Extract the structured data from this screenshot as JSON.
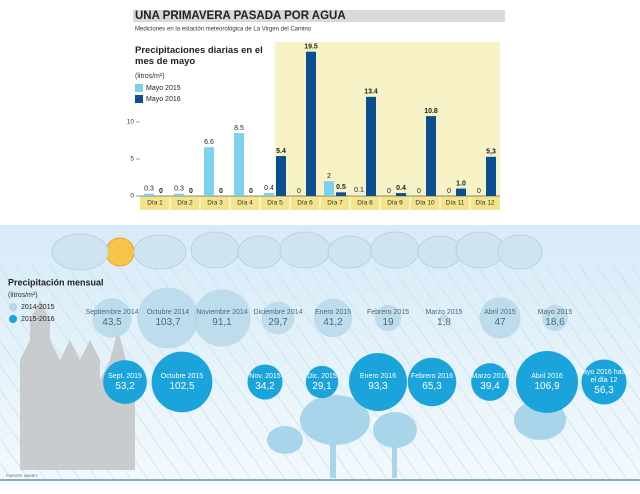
{
  "header": {
    "title": "UNA PRIMAVERA PASADA POR AGUA",
    "subtitle": "Mediciones en la estación meteorológica de La Virgen del Camino",
    "source": "FUENTE: AEMET"
  },
  "chart_data": [
    {
      "type": "bar",
      "title": "Precipitaciones diarias en el mes de mayo",
      "y_label": "(litros/m²)",
      "categories": [
        "Día 1",
        "Día 2",
        "Día 3",
        "Día 4",
        "Día 5",
        "Día 6",
        "Día 7",
        "Día 8",
        "Día 9",
        "Día 10",
        "Día 11",
        "Día 12"
      ],
      "series": [
        {
          "name": "Mayo 2015",
          "color": "#7dd0ee",
          "values": [
            0.3,
            0.3,
            6.6,
            8.5,
            0.4,
            0,
            2,
            0.1,
            0,
            0,
            0,
            0
          ],
          "value_labels": [
            "0.3",
            "0.3",
            "6.6",
            "8.5",
            "0.4",
            "0",
            "2",
            "0.1",
            "0",
            "0",
            "0",
            "0"
          ]
        },
        {
          "name": "Mayo 2016",
          "color": "#0b4f92",
          "values": [
            0,
            0,
            0,
            0,
            5.4,
            19.5,
            0.5,
            13.4,
            0.4,
            10.8,
            1.0,
            5.3
          ],
          "value_labels": [
            "0",
            "0",
            "0",
            "0",
            "5.4",
            "19.5",
            "0.5",
            "13.4",
            "0.4",
            "10.8",
            "1.0",
            "5,3"
          ]
        }
      ],
      "ylim": [
        0,
        20
      ],
      "yticks": [
        0,
        5,
        10
      ]
    },
    {
      "type": "bubble",
      "title": "Precipitación mensual",
      "y_label": "(litros/m²)",
      "series": [
        {
          "name": "2014-2015",
          "color": "#b7d8ea",
          "categories": [
            "Septiembre 2014",
            "Octubre 2014",
            "Noviembre 2014",
            "Diciembre 2014",
            "Enero 2015",
            "Febrero 2015",
            "Marzo 2015",
            "Abril 2015",
            "Mayo 2015"
          ],
          "values": [
            43.5,
            103.7,
            91.1,
            29.7,
            41.2,
            19,
            1.8,
            47,
            18.6
          ],
          "value_labels": [
            "43,5",
            "103,7",
            "91,1",
            "29,7",
            "41,2",
            "19",
            "1,8",
            "47",
            "18,6"
          ]
        },
        {
          "name": "2015-2016",
          "color": "#1ba4dc",
          "categories": [
            "Sept. 2015",
            "Octubre 2015",
            "Nov. 2015",
            "Dic. 2015",
            "Enero 2016",
            "Febrero 2016",
            "Marzo 2016",
            "Abril 2016",
            "Mayo 2016 hasta el día 12"
          ],
          "values": [
            53.2,
            102.5,
            34.2,
            29.1,
            93.3,
            65.3,
            39.4,
            106.9,
            56.3
          ],
          "value_labels": [
            "53,2",
            "102,5",
            "34,2",
            "29,1",
            "93,3",
            "65,3",
            "39,4",
            "106,9",
            "56,3"
          ]
        }
      ]
    }
  ]
}
